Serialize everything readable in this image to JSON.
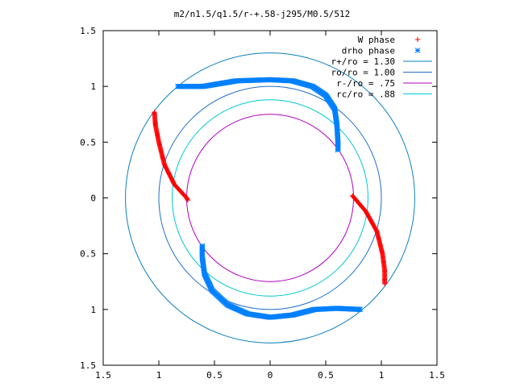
{
  "chart_data": {
    "type": "scatter",
    "title": "m2/n1.5/q1.5/r-+.58-j295/M0.5/512",
    "xlabel": "",
    "ylabel": "",
    "xlim": [
      -1.5,
      1.5
    ],
    "ylim": [
      -1.5,
      1.5
    ],
    "x_tick_values": [
      -1.5,
      -1,
      -0.5,
      0,
      0.5,
      1,
      1.5
    ],
    "x_tick_labels": [
      "1.5",
      "1",
      "0.5",
      "0",
      "0.5",
      "1",
      "1.5"
    ],
    "y_tick_values": [
      1.5,
      1,
      0.5,
      0,
      -0.5,
      -1,
      -1.5
    ],
    "y_tick_labels": [
      "1.5",
      "1",
      "0.5",
      "0",
      "0.5",
      "1",
      "1.5"
    ],
    "grid": false,
    "legend_position": "top-right",
    "legend": [
      {
        "label": "W phase",
        "color": "#ff0000",
        "marker": "+"
      },
      {
        "label": "drho phase",
        "color": "#0080ff",
        "marker": "*"
      },
      {
        "label": "r+/ro = 1.30",
        "color": "#0a7fc0",
        "marker": "line"
      },
      {
        "label": "ro/ro = 1.00",
        "color": "#1f6fc9",
        "marker": "line"
      },
      {
        "label": "r-/ro =  .75",
        "color": "#b000c0",
        "marker": "line"
      },
      {
        "label": "rc/ro =  .88",
        "color": "#00c8d0",
        "marker": "line"
      }
    ],
    "circles": [
      {
        "label": "r+/ro = 1.30",
        "radius": 1.3,
        "color": "#0a7fc0"
      },
      {
        "label": "ro/ro = 1.00",
        "radius": 1.0,
        "color": "#1f6fc9"
      },
      {
        "label": "r-/ro =  .75",
        "radius": 0.75,
        "color": "#b000c0"
      },
      {
        "label": "rc/ro =  .88",
        "radius": 0.88,
        "color": "#00c8d0"
      }
    ],
    "series": [
      {
        "name": "W phase",
        "color": "#ff0000",
        "arcs": [
          {
            "points": [
              [
                -1.04,
                0.77
              ],
              [
                -1.03,
                0.65
              ],
              [
                -1.0,
                0.5
              ],
              [
                -0.95,
                0.3
              ],
              [
                -0.86,
                0.12
              ],
              [
                -0.75,
                0.0
              ],
              [
                -0.74,
                -0.02
              ]
            ]
          },
          {
            "points": [
              [
                0.74,
                0.02
              ],
              [
                0.86,
                -0.12
              ],
              [
                0.96,
                -0.3
              ],
              [
                1.01,
                -0.5
              ],
              [
                1.03,
                -0.65
              ],
              [
                1.03,
                -0.77
              ]
            ]
          }
        ]
      },
      {
        "name": "drho phase",
        "color": "#0080ff",
        "arcs": [
          {
            "points": [
              [
                -0.83,
                1.0
              ],
              [
                -0.6,
                1.0
              ],
              [
                -0.3,
                1.05
              ],
              [
                0.0,
                1.06
              ],
              [
                0.2,
                1.05
              ],
              [
                0.38,
                1.0
              ],
              [
                0.5,
                0.92
              ],
              [
                0.58,
                0.8
              ],
              [
                0.6,
                0.66
              ],
              [
                0.61,
                0.5
              ],
              [
                0.61,
                0.43
              ]
            ]
          },
          {
            "points": [
              [
                -0.61,
                -0.43
              ],
              [
                -0.61,
                -0.53
              ],
              [
                -0.59,
                -0.68
              ],
              [
                -0.52,
                -0.83
              ],
              [
                -0.38,
                -0.96
              ],
              [
                -0.2,
                -1.04
              ],
              [
                0.0,
                -1.07
              ],
              [
                0.2,
                -1.05
              ],
              [
                0.4,
                -1.0
              ],
              [
                0.6,
                -0.99
              ],
              [
                0.81,
                -1.0
              ]
            ]
          }
        ]
      }
    ]
  }
}
